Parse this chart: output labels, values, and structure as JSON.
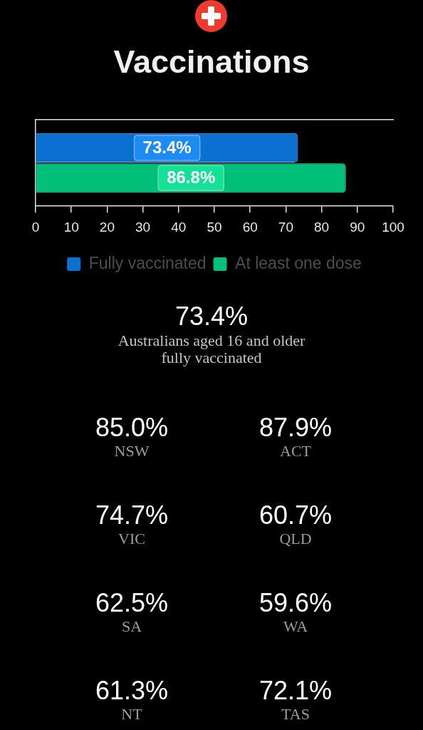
{
  "chart_data": [
    {
      "type": "bar",
      "title": "Vaccinations",
      "orientation": "horizontal",
      "categories": [
        null
      ],
      "series": [
        {
          "name": "Fully vaccinated",
          "color": "#0a70d2",
          "values": [
            73.4
          ],
          "value_labels": [
            "73.4%"
          ]
        },
        {
          "name": "At least one dose",
          "color": "#00c07a",
          "values": [
            86.8
          ],
          "value_labels": [
            "86.8%"
          ]
        }
      ],
      "xlim": [
        0,
        100
      ],
      "xticks": [
        0,
        10,
        20,
        30,
        40,
        50,
        60,
        70,
        80,
        90,
        100
      ],
      "legend": "bottom"
    },
    {
      "type": "other",
      "annotations": [
        "73.4%",
        "Australians aged 16 and older fully vaccinated",
        "85.0%",
        "NSW",
        "87.9%",
        "ACT",
        "74.7%",
        "VIC",
        "60.7%",
        "QLD",
        "62.5%",
        "SA",
        "59.6%",
        "WA",
        "61.3%",
        "NT",
        "72.1%",
        "TAS"
      ]
    }
  ]
}
